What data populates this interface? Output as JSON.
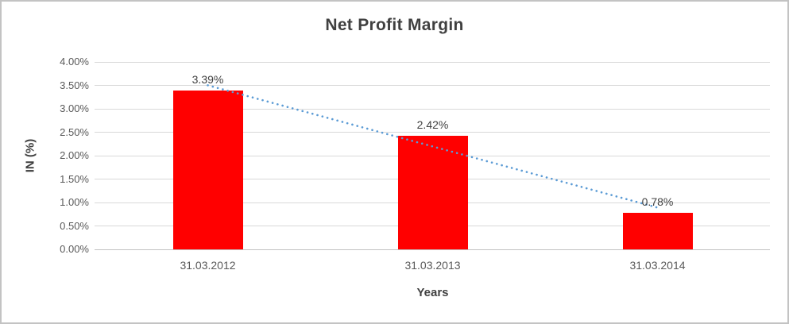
{
  "chart_data": {
    "type": "bar",
    "title": "Net Profit Margin",
    "xlabel": "Years",
    "ylabel": "IN (%)",
    "categories": [
      "31.03.2012",
      "31.03.2013",
      "31.03.2014"
    ],
    "values": [
      3.39,
      2.42,
      0.78
    ],
    "data_labels": [
      "3.39%",
      "2.42%",
      "0.78%"
    ],
    "ylim": [
      0,
      4
    ],
    "y_tick_step": 0.5,
    "y_tick_labels_top_to_bottom": [
      "4.00%",
      "3.50%",
      "3.00%",
      "2.50%",
      "2.00%",
      "1.50%",
      "1.00%",
      "0.50%",
      "0.00%"
    ],
    "grid": true,
    "legend": "none",
    "trendline": {
      "type": "linear",
      "style": "dotted"
    },
    "colors": {
      "bar": "#FF0000",
      "trendline": "#5B9BD5",
      "gridline": "#D9D9D9",
      "axis_line": "#C1C1C1",
      "title_text": "#404040",
      "axis_text": "#595959",
      "data_label_text": "#404040",
      "border": "#C3C3C3",
      "background": "#FFFFFF"
    }
  }
}
